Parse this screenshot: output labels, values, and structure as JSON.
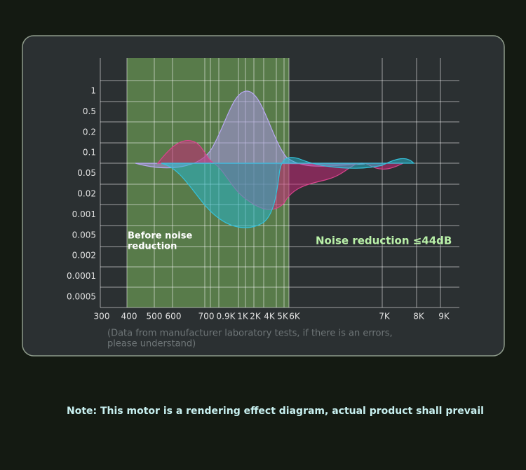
{
  "y_labels": [
    "1",
    "0.5",
    "0.2",
    "0.1",
    "0.05",
    "0.02",
    "0.001",
    "0.005",
    "0.002",
    "0.0001",
    "0.0005"
  ],
  "x_labels": [
    "300",
    "400",
    "500",
    "600",
    "700",
    "0.9K",
    "1K",
    "2K",
    "4K",
    "5K",
    "6K",
    "7K",
    "8K",
    "9K"
  ],
  "before_label": [
    "Before noise",
    "reduction"
  ],
  "after_label": "Noise reduction ≤44dB",
  "source_note": [
    "(Data from manufacturer laboratory tests,  if there is an errors,",
    "please understand)"
  ],
  "footer_note": "Note: This motor is a rendering effect diagram, actual product shall prevail"
}
